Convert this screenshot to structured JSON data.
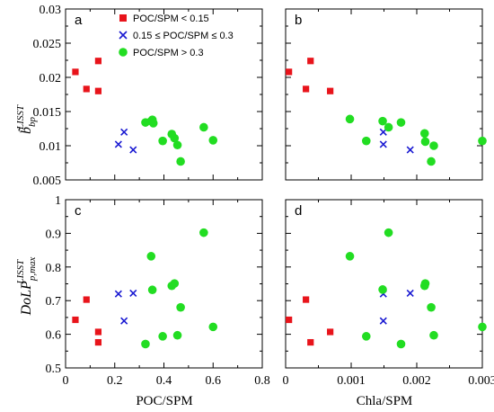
{
  "figure": {
    "series_names": {
      "low": "POC/SPM < 0.15",
      "mid": "0.15 ≤ POC/SPM ≤ 0.3",
      "high": "POC/SPM > 0.3"
    },
    "colors": {
      "low": "#e8141b",
      "mid": "#1a1ad2",
      "high": "#22dd22"
    },
    "x_titles": {
      "poc": "POC/SPM",
      "chla": "Chla/SPM"
    },
    "y_titles": {
      "top": {
        "main": "b̃",
        "sub": "bp",
        "sup": "LISST"
      },
      "bottom": {
        "main": "DoLP",
        "sub": "p,max",
        "sup": "LISST"
      }
    }
  },
  "chart_data": [
    {
      "panel": "a",
      "type": "scatter",
      "xlim": [
        0,
        0.8
      ],
      "ylim": [
        0.005,
        0.03
      ],
      "xticks": [
        "0",
        "0.2",
        "0.4",
        "0.6",
        "0.8"
      ],
      "yticks": [
        "0.005",
        "0.01",
        "0.015",
        "0.02",
        "0.025",
        "0.03"
      ],
      "legend": "top-left",
      "series": [
        {
          "name": "POC/SPM < 0.15",
          "key": "low",
          "marker": "square",
          "points": [
            [
              0.04,
              0.0208
            ],
            [
              0.085,
              0.0183
            ],
            [
              0.133,
              0.0224
            ],
            [
              0.133,
              0.018
            ]
          ]
        },
        {
          "name": "0.15 ≤ POC/SPM ≤ 0.3",
          "key": "mid",
          "marker": "x",
          "points": [
            [
              0.215,
              0.0102
            ],
            [
              0.238,
              0.012
            ],
            [
              0.275,
              0.0094
            ]
          ]
        },
        {
          "name": "POC/SPM > 0.3",
          "key": "high",
          "marker": "circle",
          "points": [
            [
              0.325,
              0.0134
            ],
            [
              0.348,
              0.0136
            ],
            [
              0.353,
              0.0138
            ],
            [
              0.357,
              0.0133
            ],
            [
              0.395,
              0.0107
            ],
            [
              0.432,
              0.0117
            ],
            [
              0.443,
              0.0111
            ],
            [
              0.455,
              0.0101
            ],
            [
              0.468,
              0.0077
            ],
            [
              0.562,
              0.0127
            ],
            [
              0.6,
              0.0108
            ]
          ]
        }
      ]
    },
    {
      "panel": "b",
      "type": "scatter",
      "xlim": [
        0,
        0.003
      ],
      "ylim": [
        0.005,
        0.03
      ],
      "xticks": [
        "0",
        "0.001",
        "0.002",
        "0.003"
      ],
      "yticks": [
        "0.005",
        "0.01",
        "0.015",
        "0.02",
        "0.025",
        "0.03"
      ],
      "series": [
        {
          "name": "POC/SPM < 0.15",
          "key": "low",
          "marker": "square",
          "points": [
            [
              5e-05,
              0.0208
            ],
            [
              0.00031,
              0.0183
            ],
            [
              0.00038,
              0.0224
            ],
            [
              0.00068,
              0.018
            ]
          ]
        },
        {
          "name": "0.15 ≤ POC/SPM ≤ 0.3",
          "key": "mid",
          "marker": "x",
          "points": [
            [
              0.00149,
              0.012
            ],
            [
              0.00149,
              0.0102
            ],
            [
              0.0019,
              0.0094
            ]
          ]
        },
        {
          "name": "POC/SPM > 0.3",
          "key": "high",
          "marker": "circle",
          "points": [
            [
              0.00098,
              0.0139
            ],
            [
              0.00123,
              0.0107
            ],
            [
              0.00148,
              0.0136
            ],
            [
              0.00157,
              0.0127
            ],
            [
              0.00176,
              0.0134
            ],
            [
              0.00212,
              0.0118
            ],
            [
              0.00213,
              0.0106
            ],
            [
              0.00222,
              0.0077
            ],
            [
              0.00226,
              0.01
            ],
            [
              0.003,
              0.0107
            ]
          ]
        }
      ]
    },
    {
      "panel": "c",
      "type": "scatter",
      "xlim": [
        0,
        0.8
      ],
      "ylim": [
        0.5,
        1
      ],
      "xticks": [
        "0",
        "0.2",
        "0.4",
        "0.6",
        "0.8"
      ],
      "yticks": [
        "0.5",
        "0.6",
        "0.7",
        "0.8",
        "0.9",
        "1"
      ],
      "series": [
        {
          "name": "POC/SPM < 0.15",
          "key": "low",
          "marker": "square",
          "points": [
            [
              0.04,
              0.643
            ],
            [
              0.085,
              0.703
            ],
            [
              0.133,
              0.607
            ],
            [
              0.133,
              0.576
            ]
          ]
        },
        {
          "name": "0.15 ≤ POC/SPM ≤ 0.3",
          "key": "mid",
          "marker": "x",
          "points": [
            [
              0.215,
              0.72
            ],
            [
              0.238,
              0.64
            ],
            [
              0.275,
              0.722
            ]
          ]
        },
        {
          "name": "POC/SPM > 0.3",
          "key": "high",
          "marker": "circle",
          "points": [
            [
              0.325,
              0.571
            ],
            [
              0.348,
              0.832
            ],
            [
              0.353,
              0.732
            ],
            [
              0.395,
              0.594
            ],
            [
              0.432,
              0.744
            ],
            [
              0.443,
              0.751
            ],
            [
              0.455,
              0.597
            ],
            [
              0.468,
              0.68
            ],
            [
              0.562,
              0.902
            ],
            [
              0.6,
              0.622
            ]
          ]
        }
      ]
    },
    {
      "panel": "d",
      "type": "scatter",
      "xlim": [
        0,
        0.003
      ],
      "ylim": [
        0.5,
        1
      ],
      "xticks": [
        "0",
        "0.001",
        "0.002",
        "0.003"
      ],
      "yticks": [
        "0.5",
        "0.6",
        "0.7",
        "0.8",
        "0.9",
        "1"
      ],
      "series": [
        {
          "name": "POC/SPM < 0.15",
          "key": "low",
          "marker": "square",
          "points": [
            [
              5e-05,
              0.643
            ],
            [
              0.00031,
              0.703
            ],
            [
              0.00038,
              0.576
            ],
            [
              0.00068,
              0.607
            ]
          ]
        },
        {
          "name": "0.15 ≤ POC/SPM ≤ 0.3",
          "key": "mid",
          "marker": "x",
          "points": [
            [
              0.00149,
              0.72
            ],
            [
              0.00149,
              0.64
            ],
            [
              0.0019,
              0.722
            ]
          ]
        },
        {
          "name": "POC/SPM > 0.3",
          "key": "high",
          "marker": "circle",
          "points": [
            [
              0.00098,
              0.832
            ],
            [
              0.00123,
              0.594
            ],
            [
              0.00148,
              0.733
            ],
            [
              0.00157,
              0.902
            ],
            [
              0.00176,
              0.571
            ],
            [
              0.00212,
              0.744
            ],
            [
              0.00213,
              0.751
            ],
            [
              0.00222,
              0.68
            ],
            [
              0.00226,
              0.597
            ],
            [
              0.003,
              0.622
            ]
          ]
        }
      ]
    }
  ]
}
